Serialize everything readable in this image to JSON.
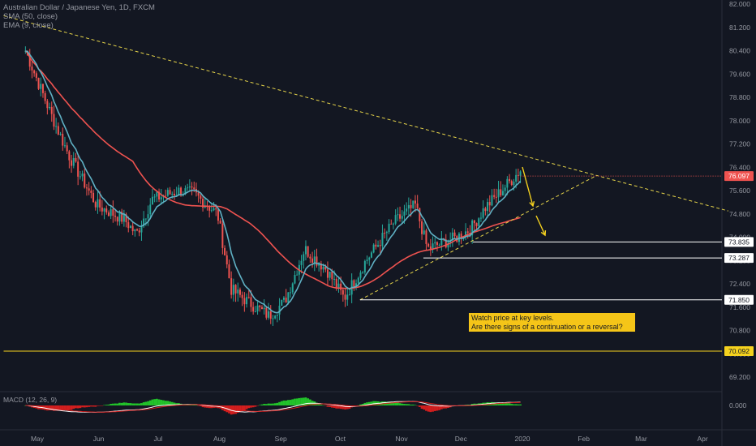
{
  "header": {
    "symbol": "Australian Dollar / Japanese Yen, 1D, FXCM",
    "ma50": "SMA (50, close)",
    "ema9": "EMA (9, close)"
  },
  "note": {
    "line1": "Watch price at key levels.",
    "line2": "Are there signs of a continuation or a reversal?"
  },
  "macd_label": "MACD (12, 26, 9)",
  "colors": {
    "bg": "#131722",
    "up": "#26a69a",
    "down": "#ef5350",
    "sma": "#ef5350",
    "ema": "#5fb0c3",
    "trend": "#e6d44a",
    "support": "#f5d21e",
    "macd_pos": "#22c22a",
    "macd_neg": "#d21e1e"
  },
  "chart_data": {
    "type": "candlestick",
    "x_ticks": [
      "May",
      "Jun",
      "Jul",
      "Aug",
      "Sep",
      "Oct",
      "Nov",
      "Dec",
      "2020",
      "Feb",
      "Mar",
      "Apr"
    ],
    "y_ticks": [
      "82.000",
      "81.200",
      "80.400",
      "79.600",
      "78.800",
      "78.000",
      "77.200",
      "76.400",
      "75.600",
      "74.800",
      "74.000",
      "73.200",
      "72.400",
      "71.600",
      "70.800",
      "70.000",
      "69.200"
    ],
    "ylim": [
      69.2,
      82.0
    ],
    "close_points": [
      {
        "x": "2019-04-25",
        "y": 80.4
      },
      {
        "x": "2019-05-08",
        "y": 78.2
      },
      {
        "x": "2019-05-17",
        "y": 76.8
      },
      {
        "x": "2019-05-31",
        "y": 75.1
      },
      {
        "x": "2019-06-14",
        "y": 74.6
      },
      {
        "x": "2019-06-20",
        "y": 74.1
      },
      {
        "x": "2019-06-28",
        "y": 75.3
      },
      {
        "x": "2019-07-12",
        "y": 75.6
      },
      {
        "x": "2019-07-19",
        "y": 75.5
      },
      {
        "x": "2019-07-31",
        "y": 74.8
      },
      {
        "x": "2019-08-07",
        "y": 72.2
      },
      {
        "x": "2019-08-15",
        "y": 71.8
      },
      {
        "x": "2019-08-26",
        "y": 71.3
      },
      {
        "x": "2019-09-03",
        "y": 71.8
      },
      {
        "x": "2019-09-13",
        "y": 73.6
      },
      {
        "x": "2019-09-24",
        "y": 72.9
      },
      {
        "x": "2019-10-03",
        "y": 71.9
      },
      {
        "x": "2019-10-14",
        "y": 73.2
      },
      {
        "x": "2019-10-28",
        "y": 74.5
      },
      {
        "x": "2019-11-08",
        "y": 75.1
      },
      {
        "x": "2019-11-14",
        "y": 73.6
      },
      {
        "x": "2019-11-29",
        "y": 74.0
      },
      {
        "x": "2019-12-06",
        "y": 74.3
      },
      {
        "x": "2019-12-13",
        "y": 75.0
      },
      {
        "x": "2019-12-20",
        "y": 75.5
      },
      {
        "x": "2019-12-31",
        "y": 76.3
      }
    ],
    "last_price": "76.097",
    "levels": [
      {
        "value": "73.835",
        "color": "white"
      },
      {
        "value": "73.287",
        "color": "white"
      },
      {
        "value": "71.850",
        "color": "white"
      },
      {
        "value": "70.092",
        "color": "yellow"
      }
    ],
    "overlays": [
      "SMA (50, close)",
      "EMA (9, close)"
    ],
    "macd_tick": "0.000"
  }
}
